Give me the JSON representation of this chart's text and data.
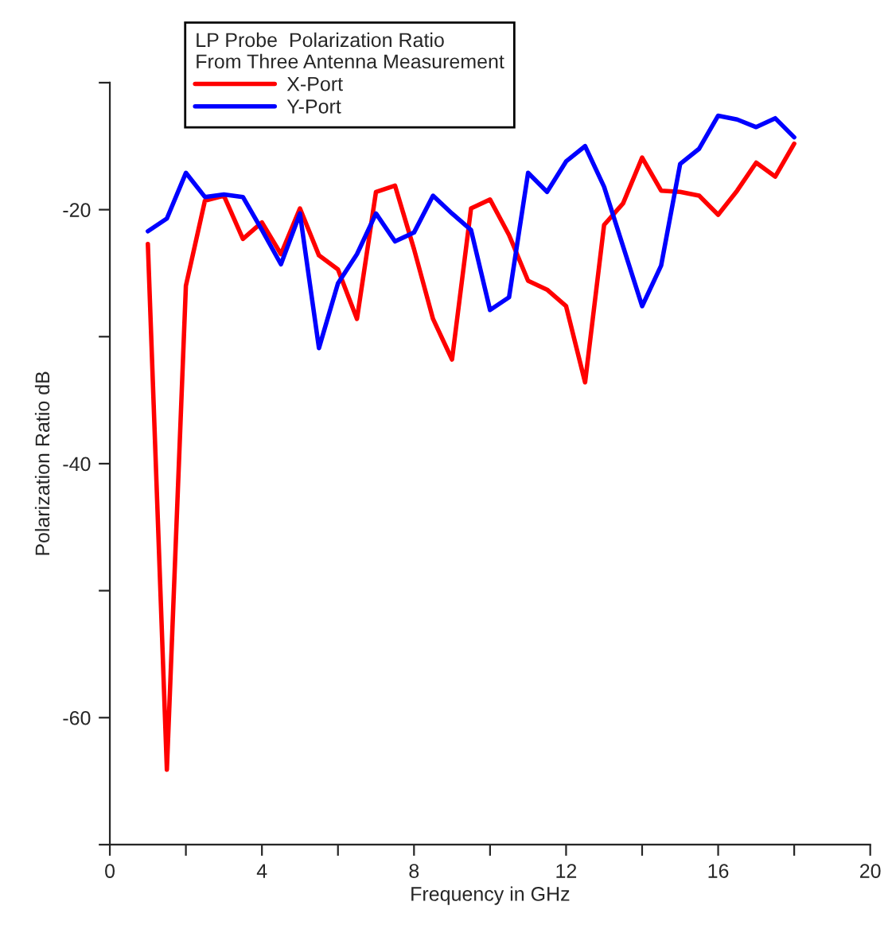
{
  "chart_data": {
    "type": "line",
    "xlabel": "Frequency in GHz",
    "ylabel": "Polarization Ratio dB",
    "legend_title": "LP Probe  Polarization Ratio\nFrom Three Antenna Measurement",
    "x": [
      1,
      1.5,
      2,
      2.5,
      3,
      3.5,
      4,
      4.5,
      5,
      5.5,
      6,
      6.5,
      7,
      7.5,
      8,
      8.5,
      9,
      9.5,
      10,
      10.5,
      11,
      11.5,
      12,
      12.5,
      13,
      13.5,
      14,
      14.5,
      15,
      15.5,
      16,
      16.5,
      17,
      17.5,
      18
    ],
    "series": [
      {
        "name": "X-Port",
        "color": "#ff0000",
        "values": [
          -22.7,
          -64.1,
          -26,
          -19.3,
          -18.9,
          -22.3,
          -21,
          -23.5,
          -19.9,
          -23.6,
          -24.7,
          -28.6,
          -18.6,
          -18.1,
          -23.1,
          -28.6,
          -31.8,
          -19.9,
          -19.2,
          -22,
          -25.6,
          -26.3,
          -27.6,
          -33.6,
          -21.2,
          -19.5,
          -15.9,
          -18.5,
          -18.6,
          -18.9,
          -20.4,
          -18.5,
          -16.3,
          -17.4,
          -14.8
        ]
      },
      {
        "name": "Y-Port",
        "color": "#0000ff",
        "values": [
          -21.7,
          -20.7,
          -17.1,
          -19,
          -18.8,
          -19,
          -21.6,
          -24.3,
          -20.3,
          -30.9,
          -25.8,
          -23.5,
          -20.3,
          -22.5,
          -21.8,
          -18.9,
          -20.3,
          -21.6,
          -27.9,
          -26.9,
          -17.1,
          -18.6,
          -16.2,
          -15,
          -18.2,
          -22.9,
          -27.6,
          -24.4,
          -16.4,
          -15.2,
          -12.6,
          -12.9,
          -13.5,
          -12.8,
          -14.3
        ]
      }
    ],
    "xlim": [
      0,
      20
    ],
    "ylim": [
      -70,
      -10
    ],
    "xticks": [
      0,
      {
        "value": 2,
        "label": null
      },
      4,
      {
        "value": 6,
        "label": null
      },
      8,
      {
        "value": 10,
        "label": null
      },
      12,
      {
        "value": 14,
        "label": null
      },
      16,
      {
        "value": 18,
        "label": null
      },
      20
    ],
    "yticks": [
      {
        "value": -70,
        "label": null
      },
      -60,
      {
        "value": -50,
        "label": null
      },
      -40,
      {
        "value": -30,
        "label": null
      },
      -20,
      {
        "value": -10,
        "label": null
      }
    ],
    "legend": "top",
    "grid": false,
    "marker": "none",
    "line_style": "solid"
  }
}
